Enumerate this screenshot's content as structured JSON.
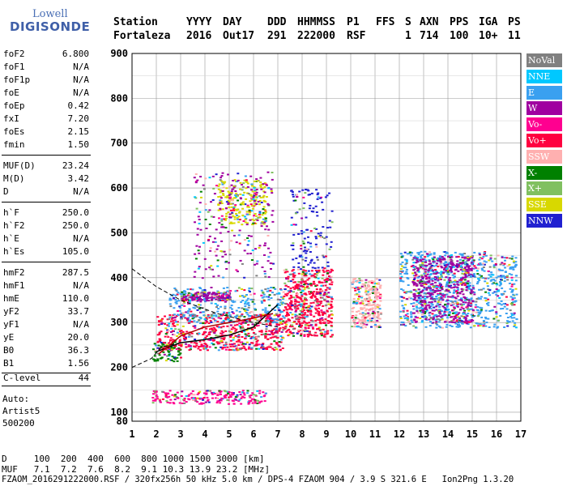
{
  "logo": {
    "line1": "Lowell",
    "line2": "DIGISONDE"
  },
  "header": {
    "labels": [
      "Station",
      "YYYY",
      "DAY",
      "DDD",
      "HHMMSS",
      "P1",
      "FFS",
      "S",
      "AXN",
      "PPS",
      "IGA",
      "PS"
    ],
    "values": [
      "Fortaleza",
      "2016",
      "Out17",
      "291",
      "222000",
      "RSF",
      "1",
      "714",
      "100",
      "10+",
      "11"
    ]
  },
  "params_group1": [
    {
      "k": "foF2",
      "v": "6.800"
    },
    {
      "k": "foF1",
      "v": "N/A"
    },
    {
      "k": "foF1p",
      "v": "N/A"
    },
    {
      "k": "foE",
      "v": "N/A"
    },
    {
      "k": "foEp",
      "v": "0.42"
    },
    {
      "k": "fxI",
      "v": "7.20"
    },
    {
      "k": "foEs",
      "v": "2.15"
    },
    {
      "k": "fmin",
      "v": "1.50"
    }
  ],
  "params_group2": [
    {
      "k": "MUF(D)",
      "v": "23.24"
    },
    {
      "k": "M(D)",
      "v": "3.42"
    },
    {
      "k": "D",
      "v": "N/A"
    }
  ],
  "params_group3": [
    {
      "k": "h`F",
      "v": "250.0"
    },
    {
      "k": "h`F2",
      "v": "250.0"
    },
    {
      "k": "h`E",
      "v": "N/A"
    },
    {
      "k": "h`Es",
      "v": "105.0"
    }
  ],
  "params_group4": [
    {
      "k": "hmF2",
      "v": "287.5"
    },
    {
      "k": "hmF1",
      "v": "N/A"
    },
    {
      "k": "hmE",
      "v": "110.0"
    },
    {
      "k": "yF2",
      "v": "33.7"
    },
    {
      "k": "yF1",
      "v": "N/A"
    },
    {
      "k": "yE",
      "v": "20.0"
    },
    {
      "k": "B0",
      "v": "36.3"
    },
    {
      "k": "B1",
      "v": "1.56"
    }
  ],
  "clevel": {
    "k": "C-level",
    "v": "44"
  },
  "auto": [
    "Auto:",
    "Artist5",
    "500200"
  ],
  "legend": [
    {
      "label": "NoVal",
      "color": "#808080"
    },
    {
      "label": "NNE",
      "color": "#00c8ff"
    },
    {
      "label": "E",
      "color": "#3aa0f0"
    },
    {
      "label": "W",
      "color": "#a000a0"
    },
    {
      "label": "Vo-",
      "color": "#ff0090"
    },
    {
      "label": "Vo+",
      "color": "#ff0040"
    },
    {
      "label": "SSW",
      "color": "#ffb0b0"
    },
    {
      "label": "X-",
      "color": "#008000"
    },
    {
      "label": "X+",
      "color": "#80c060"
    },
    {
      "label": "SSE",
      "color": "#d8d800"
    },
    {
      "label": "NNW",
      "color": "#2020d0"
    }
  ],
  "footer": {
    "d_row": "D     100  200  400  600  800 1000 1500 3000 [km]",
    "muf_row": "MUF   7.1  7.2  7.6  8.2  9.1 10.3 13.9 23.2 [MHz]",
    "file_row": "FZAOM_2016291222000.RSF / 320fx256h 50 kHz 5.0 km / DPS-4 FZAOM 904 / 3.9 S 321.6 E   Ion2Png 1.3.20"
  },
  "chart_data": {
    "type": "scatter",
    "title": "",
    "xlabel": "",
    "ylabel": "",
    "xlim": [
      1,
      17
    ],
    "ylim": [
      80,
      900
    ],
    "x_ticks": [
      "1",
      "2",
      "3",
      "4",
      "5",
      "6",
      "7",
      "8",
      "9",
      "10",
      "11",
      "12",
      "13",
      "14",
      "15",
      "16",
      "17"
    ],
    "y_ticks": [
      "100",
      "200",
      "300",
      "400",
      "500",
      "600",
      "700",
      "800",
      "900"
    ],
    "y_extra_tick": "80",
    "grid": true,
    "legend_position": "right",
    "clusters": [
      {
        "freq_range": [
          1.8,
          6.5
        ],
        "height_range": [
          120,
          150
        ],
        "series": "Vo-",
        "density": 220
      },
      {
        "freq_range": [
          1.8,
          3.0
        ],
        "height_range": [
          215,
          260
        ],
        "series": "X-",
        "density": 80
      },
      {
        "freq_range": [
          2.0,
          7.2
        ],
        "height_range": [
          240,
          320
        ],
        "series": "Vo+",
        "density": 600
      },
      {
        "freq_range": [
          2.5,
          7.2
        ],
        "height_range": [
          300,
          380
        ],
        "series": "E",
        "density": 350
      },
      {
        "freq_range": [
          3.0,
          5.0
        ],
        "height_range": [
          350,
          370
        ],
        "series": "W",
        "density": 160
      },
      {
        "freq_range": [
          4.5,
          6.5
        ],
        "height_range": [
          520,
          620
        ],
        "series": "SSE",
        "density": 260
      },
      {
        "freq_range": [
          3.5,
          6.8
        ],
        "height_range": [
          400,
          640
        ],
        "series": "W",
        "density": 220
      },
      {
        "freq_range": [
          7.2,
          9.2
        ],
        "height_range": [
          270,
          420
        ],
        "series": "Vo+",
        "density": 550
      },
      {
        "freq_range": [
          7.5,
          9.2
        ],
        "height_range": [
          420,
          600
        ],
        "series": "NNW",
        "density": 140
      },
      {
        "freq_range": [
          10.0,
          11.2
        ],
        "height_range": [
          290,
          400
        ],
        "series": "SSW",
        "density": 280
      },
      {
        "freq_range": [
          12.0,
          16.8
        ],
        "height_range": [
          290,
          460
        ],
        "series": "E",
        "density": 900
      },
      {
        "freq_range": [
          12.5,
          15.0
        ],
        "height_range": [
          300,
          450
        ],
        "series": "W",
        "density": 500
      }
    ],
    "profile_curve": {
      "x": [
        2.0,
        3.0,
        4.0,
        5.0,
        6.0,
        7.0
      ],
      "y": [
        235,
        255,
        262,
        272,
        290,
        340
      ]
    },
    "trace_curve": {
      "x": [
        2.1,
        3.0,
        4.0,
        5.0,
        6.0,
        6.8
      ],
      "y": [
        230,
        270,
        290,
        300,
        310,
        320
      ]
    },
    "dashed_curve": {
      "x": [
        1.0,
        2.0,
        3.0,
        4.5,
        6.0,
        7.0
      ],
      "y": [
        420,
        380,
        350,
        320,
        300,
        290
      ]
    },
    "dashed_low": {
      "x": [
        1.0,
        1.8,
        2.2,
        3.0
      ],
      "y": [
        200,
        220,
        245,
        255
      ]
    }
  }
}
